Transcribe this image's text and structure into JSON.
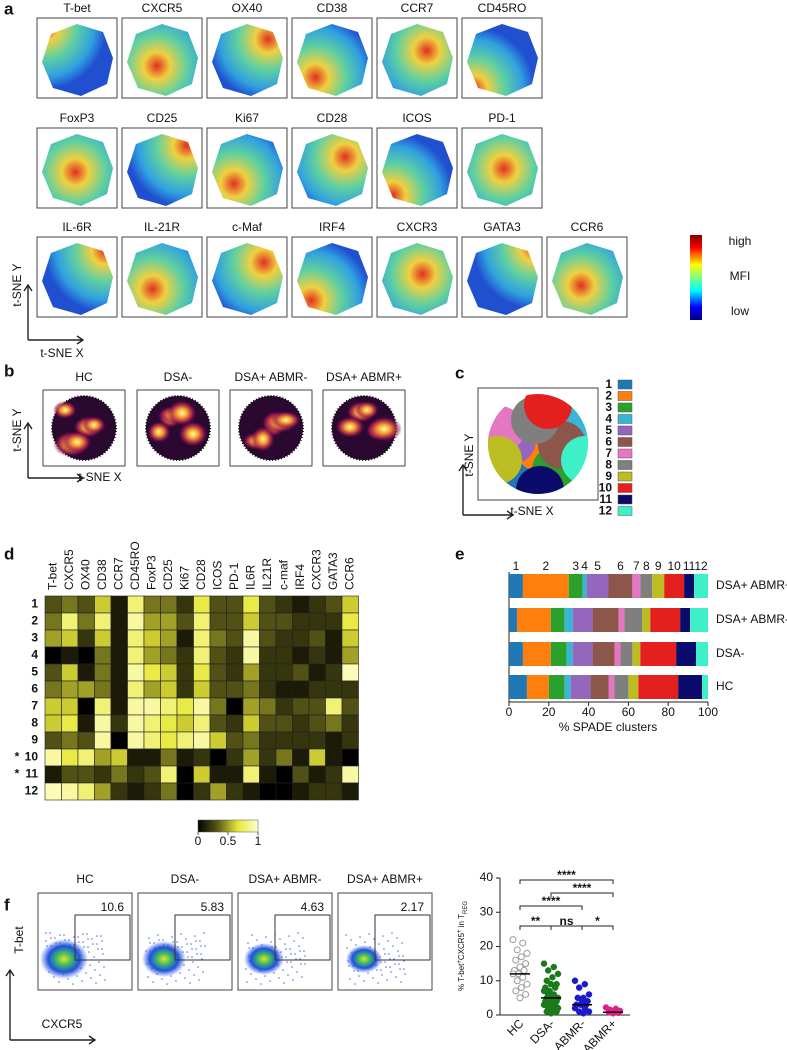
{
  "panels": {
    "a": {
      "label": "a",
      "markers": [
        "T-bet",
        "CXCR5",
        "OX40",
        "CD38",
        "CCR7",
        "CD45RO",
        "FoxP3",
        "CD25",
        "Ki67",
        "CD28",
        "ICOS",
        "PD-1",
        "IL-6R",
        "IL-21R",
        "c-Maf",
        "IRF4",
        "CXCR3",
        "GATA3",
        "CCR6"
      ],
      "colorbar": [
        "high",
        "MFI",
        "low"
      ],
      "x_axis": "t-SNE X",
      "y_axis": "t-SNE Y"
    },
    "b": {
      "label": "b",
      "groups": [
        "HC",
        "DSA-",
        "DSA+ ABMR-",
        "DSA+ ABMR+"
      ],
      "x_axis": "t-SNE X",
      "y_axis": "t-SNE Y"
    },
    "c": {
      "label": "c",
      "x_axis": "t-SNE X",
      "y_axis": "t-SNE Y",
      "clusters": [
        {
          "name": "1",
          "color": "#1f77b4"
        },
        {
          "name": "2",
          "color": "#ff7f0e"
        },
        {
          "name": "3",
          "color": "#2ca02c"
        },
        {
          "name": "4",
          "color": "#38b6d6"
        },
        {
          "name": "5",
          "color": "#9467bd"
        },
        {
          "name": "6",
          "color": "#8c564b"
        },
        {
          "name": "7",
          "color": "#e377c2"
        },
        {
          "name": "8",
          "color": "#7f7f7f"
        },
        {
          "name": "9",
          "color": "#bcbd22"
        },
        {
          "name": "10",
          "color": "#e4201f"
        },
        {
          "name": "11",
          "color": "#0b0b6b"
        },
        {
          "name": "12",
          "color": "#3ef0c8"
        }
      ]
    },
    "d": {
      "label": "d"
    },
    "e": {
      "label": "e"
    },
    "f": {
      "label": "f",
      "groups": [
        "HC",
        "DSA-",
        "DSA+ ABMR-",
        "DSA+ ABMR+"
      ],
      "gates": [
        10.6,
        5.83,
        4.63,
        2.17
      ],
      "x_axis": "CXCR5",
      "y_axis": "T-bet"
    }
  },
  "chart_data": [
    {
      "type": "heatmap",
      "x_categories": [
        "T-bet",
        "CXCR5",
        "OX40",
        "CD38",
        "CCR7",
        "CD45RO",
        "FoxP3",
        "CD25",
        "Ki67",
        "CD28",
        "ICOS",
        "PD-1",
        "IL6R",
        "IL21R",
        "c-maf",
        "IRF4",
        "CXCR3",
        "GATA3",
        "CCR6"
      ],
      "y_categories": [
        "1",
        "2",
        "3",
        "4",
        "5",
        "6",
        "7",
        "8",
        "9",
        "10",
        "11",
        "12"
      ],
      "row_annotations": [
        null,
        null,
        null,
        null,
        null,
        null,
        null,
        null,
        null,
        "*",
        "*",
        null
      ],
      "values": [
        [
          0.3,
          0.4,
          0.3,
          0.6,
          0.1,
          0.8,
          0.4,
          0.4,
          0.2,
          0.7,
          0.3,
          0.3,
          0.7,
          0.3,
          0.2,
          0.1,
          0.2,
          0.3,
          0.6
        ],
        [
          0.4,
          0.8,
          0.4,
          0.8,
          0.1,
          0.9,
          0.5,
          0.5,
          0.3,
          0.8,
          0.3,
          0.3,
          0.6,
          0.3,
          0.3,
          0.2,
          0.2,
          0.2,
          0.7
        ],
        [
          0.5,
          0.6,
          0.2,
          0.6,
          0.1,
          0.8,
          0.6,
          0.5,
          0.1,
          0.8,
          0.4,
          0.3,
          0.9,
          0.3,
          0.2,
          0.2,
          0.3,
          0.1,
          0.6
        ],
        [
          0.0,
          0.1,
          0.0,
          0.4,
          0.1,
          0.8,
          0.5,
          0.4,
          0.2,
          0.8,
          0.3,
          0.2,
          0.9,
          0.2,
          0.2,
          0.1,
          0.2,
          0.1,
          0.5
        ],
        [
          0.3,
          0.6,
          0.1,
          0.4,
          0.1,
          0.9,
          0.7,
          0.6,
          0.2,
          0.7,
          0.3,
          0.2,
          0.5,
          0.2,
          0.2,
          0.3,
          0.1,
          0.2,
          0.95
        ],
        [
          0.4,
          0.5,
          0.5,
          0.4,
          0.1,
          0.8,
          0.5,
          0.6,
          0.2,
          0.6,
          0.3,
          0.3,
          0.4,
          0.2,
          0.1,
          0.1,
          0.2,
          0.2,
          0.2
        ],
        [
          0.6,
          0.6,
          0.0,
          0.8,
          0.1,
          0.9,
          0.9,
          0.8,
          0.7,
          0.9,
          0.4,
          0.0,
          0.5,
          0.4,
          0.2,
          0.3,
          0.3,
          0.8,
          0.3
        ],
        [
          0.6,
          0.7,
          0.1,
          0.9,
          0.2,
          0.9,
          0.8,
          0.7,
          0.6,
          0.8,
          0.3,
          0.2,
          0.6,
          0.3,
          0.3,
          0.2,
          0.3,
          0.4,
          0.2
        ],
        [
          0.3,
          0.4,
          0.3,
          0.9,
          0.0,
          0.9,
          0.8,
          0.7,
          0.8,
          0.9,
          0.6,
          0.3,
          0.4,
          0.2,
          0.2,
          0.2,
          0.2,
          0.1,
          0.2
        ],
        [
          0.9,
          0.7,
          0.8,
          0.5,
          0.6,
          0.1,
          0.1,
          0.4,
          0.1,
          0.2,
          0.0,
          0.2,
          0.5,
          0.2,
          0.4,
          0.1,
          0.6,
          0.1,
          0.0
        ],
        [
          0.1,
          0.3,
          0.3,
          0.2,
          0.4,
          0.2,
          0.3,
          0.8,
          0.0,
          0.6,
          0.1,
          0.1,
          0.8,
          0.1,
          0.0,
          0.3,
          0.1,
          0.2,
          0.9
        ],
        [
          0.95,
          0.9,
          0.8,
          0.5,
          0.2,
          0.1,
          0.2,
          0.4,
          0.0,
          0.2,
          0.5,
          0.2,
          0.1,
          0.0,
          0.0,
          0.1,
          0.2,
          0.2,
          0.1
        ]
      ],
      "colorscale": [
        "#000000",
        "#5a5a18",
        "#e8e838",
        "#ffffd0"
      ],
      "zlim": [
        0,
        1
      ],
      "zticks": [
        0,
        0.5,
        1
      ]
    },
    {
      "type": "stacked-bar",
      "orientation": "horizontal",
      "categories": [
        "DSA+ ABMR+",
        "DSA+ ABMR-",
        "DSA-",
        "HC"
      ],
      "series": [
        {
          "name": "1",
          "color": "#1f77b4",
          "values": [
            7,
            4,
            7,
            9
          ]
        },
        {
          "name": "2",
          "color": "#ff7f0e",
          "values": [
            23,
            17,
            14,
            11
          ]
        },
        {
          "name": "3",
          "color": "#2ca02c",
          "values": [
            7,
            7,
            8,
            8
          ]
        },
        {
          "name": "4",
          "color": "#38b6d6",
          "values": [
            2,
            4,
            3,
            3
          ]
        },
        {
          "name": "5",
          "color": "#9467bd",
          "values": [
            11,
            10,
            10,
            10
          ]
        },
        {
          "name": "6",
          "color": "#8c564b",
          "values": [
            12,
            13,
            11,
            9
          ]
        },
        {
          "name": "7",
          "color": "#e377c2",
          "values": [
            4,
            3,
            3,
            3
          ]
        },
        {
          "name": "8",
          "color": "#7f7f7f",
          "values": [
            6,
            9,
            6,
            7
          ]
        },
        {
          "name": "9",
          "color": "#bcbd22",
          "values": [
            6,
            4,
            4,
            5
          ]
        },
        {
          "name": "10",
          "color": "#e4201f",
          "values": [
            10,
            15,
            18,
            20
          ]
        },
        {
          "name": "11",
          "color": "#0b0b6b",
          "values": [
            5,
            5,
            10,
            12
          ]
        },
        {
          "name": "12",
          "color": "#3ef0c8",
          "values": [
            7,
            9,
            6,
            3
          ]
        }
      ],
      "xlim": [
        0,
        100
      ],
      "xticks": [
        0,
        20,
        40,
        60,
        80,
        100
      ],
      "xlabel": "% SPADE clusters"
    },
    {
      "type": "dot",
      "categories": [
        "HC",
        "DSA-",
        "DSA+ ABMR-",
        "DSA+ ABMR+"
      ],
      "values": [
        [
          22,
          21,
          19,
          18,
          17,
          16,
          15,
          14,
          13,
          13,
          12,
          12,
          11,
          10,
          9,
          8,
          7,
          6,
          5
        ],
        [
          15,
          14,
          13,
          12,
          11,
          10,
          9,
          9,
          8,
          8,
          7,
          7,
          6,
          6,
          5,
          5,
          5,
          4,
          4,
          4,
          3,
          3,
          3,
          2,
          2,
          2,
          1,
          1,
          1,
          0.5
        ],
        [
          10,
          9,
          8,
          6,
          5,
          5,
          4,
          4,
          3,
          3,
          3,
          2,
          2,
          1,
          1,
          0.5
        ],
        [
          2.2,
          1.8,
          1.5,
          1.2,
          1,
          0.8,
          0.6,
          0.5
        ]
      ],
      "colors": [
        "#999999",
        "#1a7a1a",
        "#1a1acc",
        "#e0208a"
      ],
      "markers": [
        "open",
        "filled",
        "filled",
        "filled"
      ],
      "medians": [
        12,
        5,
        3,
        0.8
      ],
      "ylim": [
        0,
        40
      ],
      "yticks": [
        0,
        10,
        20,
        30,
        40
      ],
      "ylabel": [
        "% T-bet",
        "+",
        "CXCR5",
        "+",
        " in T",
        "REG"
      ],
      "comparisons": [
        {
          "groups": [
            0,
            3
          ],
          "label": "****"
        },
        {
          "groups": [
            1,
            3
          ],
          "label": "****"
        },
        {
          "groups": [
            0,
            2
          ],
          "label": "****"
        },
        {
          "groups": [
            0,
            1
          ],
          "label": "**"
        },
        {
          "groups": [
            1,
            2
          ],
          "label": "ns"
        },
        {
          "groups": [
            2,
            3
          ],
          "label": "*"
        }
      ]
    }
  ]
}
